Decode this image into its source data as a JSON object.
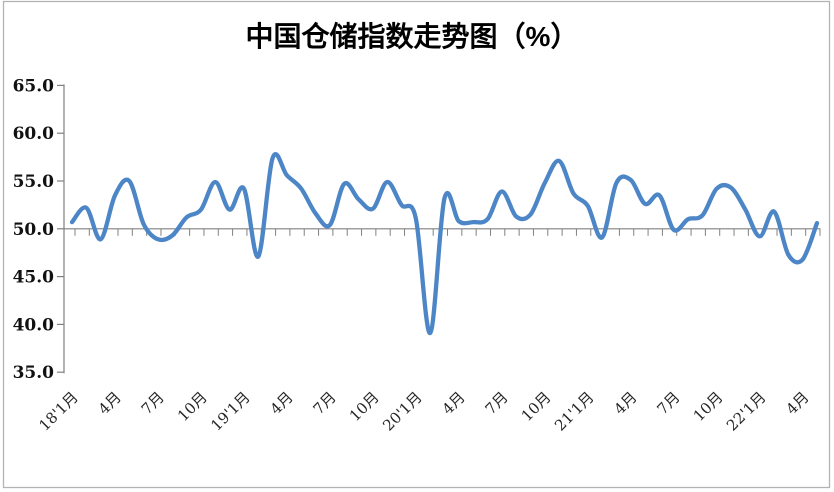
{
  "title": "中国仓储指数走势图（%）",
  "frame": {
    "border_color": "#b3b3b3",
    "background": "#ffffff"
  },
  "chart_data": {
    "type": "line",
    "title": "中国仓储指数走势图（%）",
    "series_name": "中国仓储指数",
    "smooth": true,
    "grid": "off",
    "legend": "none",
    "line_color": "#4d86c6",
    "axis_color": "#808080",
    "ylim": [
      35,
      65
    ],
    "ytick_step": 5,
    "ytick_labels": [
      "65.0",
      "60.0",
      "55.0",
      "50.0",
      "45.0",
      "40.0",
      "35.0"
    ],
    "x_axis_cross_y": 50,
    "x_tick_labels": [
      "18'1月",
      "4月",
      "7月",
      "10月",
      "19'1月",
      "4月",
      "7月",
      "10月",
      "20'1月",
      "4月",
      "7月",
      "10月",
      "21'1月",
      "4月",
      "7月",
      "10月",
      "22'1月",
      "4月"
    ],
    "x": [
      "18'1月",
      "18'2月",
      "18'3月",
      "18'4月",
      "18'5月",
      "18'6月",
      "18'7月",
      "18'8月",
      "18'9月",
      "18'10月",
      "18'11月",
      "18'12月",
      "19'1月",
      "19'2月",
      "19'3月",
      "19'4月",
      "19'5月",
      "19'6月",
      "19'7月",
      "19'8月",
      "19'9月",
      "19'10月",
      "19'11月",
      "19'12月",
      "20'1月",
      "20'2月",
      "20'3月",
      "20'4月",
      "20'5月",
      "20'6月",
      "20'7月",
      "20'8月",
      "20'9月",
      "20'10月",
      "20'11月",
      "20'12月",
      "21'1月",
      "21'2月",
      "21'3月",
      "21'4月",
      "21'5月",
      "21'6月",
      "21'7月",
      "21'8月",
      "21'9月",
      "21'10月",
      "21'11月",
      "21'12月",
      "22'1月",
      "22'2月",
      "22'3月",
      "22'4月",
      "22'5月"
    ],
    "values": [
      50.7,
      52.2,
      48.9,
      53.5,
      55.0,
      50.5,
      48.9,
      49.3,
      51.2,
      52.0,
      54.9,
      52.0,
      54.2,
      47.1,
      57.4,
      55.6,
      54.2,
      51.6,
      50.4,
      54.7,
      53.1,
      52.1,
      54.9,
      52.5,
      51.1,
      39.1,
      53.2,
      50.8,
      50.7,
      51.0,
      53.9,
      51.3,
      51.5,
      54.8,
      57.1,
      53.7,
      52.4,
      49.1,
      54.8,
      55.1,
      52.6,
      53.5,
      49.9,
      51.0,
      51.4,
      54.2,
      54.3,
      52.0,
      49.2,
      51.8,
      47.3,
      46.8,
      50.6
    ]
  }
}
